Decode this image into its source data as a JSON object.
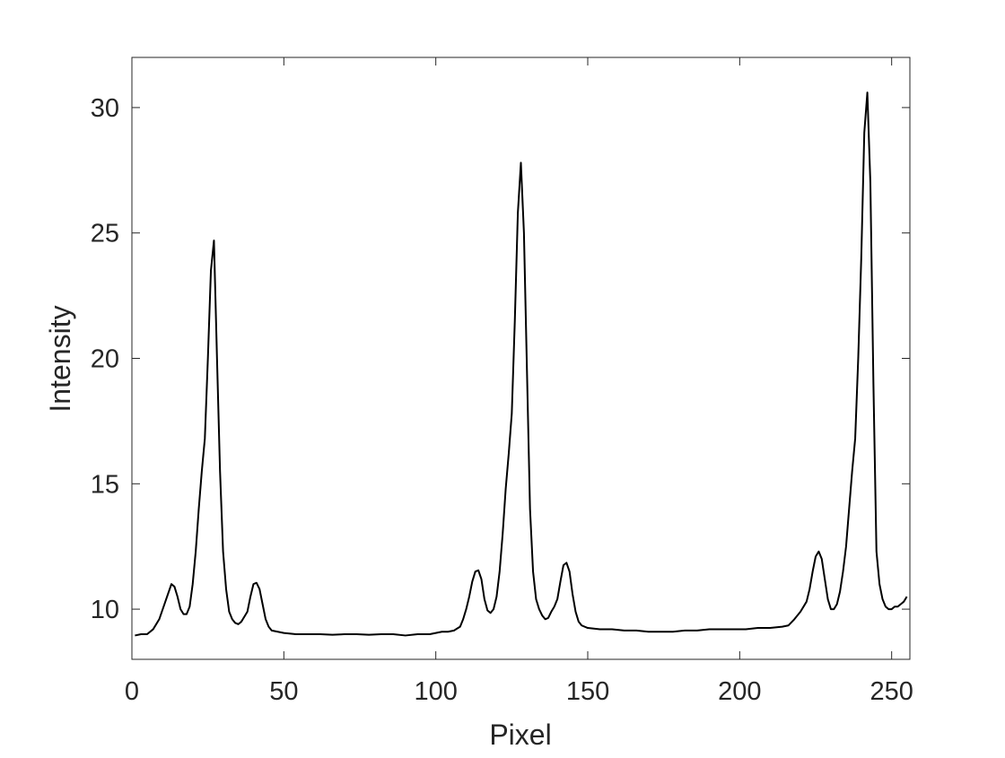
{
  "chart_data": {
    "type": "line",
    "x_label": "Pixel",
    "y_label": "Intensity",
    "xlim": [
      0,
      256
    ],
    "ylim": [
      8,
      32
    ],
    "xticks": [
      0,
      50,
      100,
      150,
      200,
      250
    ],
    "yticks": [
      10,
      15,
      20,
      25,
      30
    ],
    "grid": false,
    "series": [
      {
        "color": "#000000",
        "x": [
          1,
          3,
          5,
          7,
          9,
          11,
          13,
          14,
          15,
          16,
          17,
          18,
          19,
          20,
          21,
          22,
          23,
          24,
          25,
          26,
          27,
          28,
          29,
          30,
          31,
          32,
          33,
          34,
          35,
          36,
          37,
          38,
          39,
          40,
          41,
          42,
          43,
          44,
          45,
          46,
          48,
          50,
          54,
          58,
          62,
          66,
          70,
          74,
          78,
          82,
          86,
          90,
          94,
          98,
          102,
          104,
          106,
          108,
          109,
          110,
          111,
          112,
          113,
          114,
          115,
          116,
          117,
          118,
          119,
          120,
          121,
          122,
          123,
          124,
          125,
          126,
          127,
          128,
          129,
          130,
          131,
          132,
          133,
          134,
          135,
          136,
          137,
          138,
          139,
          140,
          141,
          142,
          143,
          144,
          145,
          146,
          147,
          148,
          150,
          154,
          158,
          162,
          166,
          170,
          174,
          178,
          182,
          186,
          190,
          194,
          198,
          202,
          206,
          210,
          214,
          216,
          218,
          220,
          222,
          223,
          224,
          225,
          226,
          227,
          228,
          229,
          230,
          231,
          232,
          233,
          234,
          235,
          236,
          237,
          238,
          239,
          240,
          241,
          242,
          243,
          244,
          245,
          246,
          247,
          248,
          249,
          250,
          251,
          252,
          253,
          254,
          255
        ],
        "values": [
          8.95,
          9.0,
          9.0,
          9.2,
          9.6,
          10.3,
          11.0,
          10.9,
          10.5,
          10.0,
          9.8,
          9.8,
          10.1,
          11.0,
          12.3,
          14.0,
          15.5,
          16.8,
          20.0,
          23.5,
          24.7,
          20.0,
          15.5,
          12.3,
          10.8,
          9.9,
          9.6,
          9.45,
          9.4,
          9.5,
          9.7,
          9.9,
          10.5,
          11.0,
          11.05,
          10.8,
          10.2,
          9.6,
          9.3,
          9.15,
          9.1,
          9.05,
          9.0,
          9.0,
          9.0,
          8.98,
          9.0,
          9.0,
          8.98,
          9.0,
          9.0,
          8.95,
          9.0,
          9.0,
          9.1,
          9.1,
          9.15,
          9.3,
          9.6,
          10.0,
          10.5,
          11.1,
          11.5,
          11.55,
          11.2,
          10.4,
          9.95,
          9.85,
          10.0,
          10.5,
          11.5,
          13.0,
          14.8,
          16.2,
          17.8,
          21.5,
          25.8,
          27.8,
          25.0,
          19.5,
          14.0,
          11.5,
          10.4,
          10.0,
          9.75,
          9.6,
          9.65,
          9.9,
          10.1,
          10.4,
          11.1,
          11.75,
          11.85,
          11.5,
          10.6,
          9.9,
          9.5,
          9.35,
          9.25,
          9.2,
          9.2,
          9.15,
          9.15,
          9.1,
          9.1,
          9.1,
          9.15,
          9.15,
          9.2,
          9.2,
          9.2,
          9.2,
          9.25,
          9.25,
          9.3,
          9.35,
          9.6,
          9.9,
          10.3,
          10.8,
          11.5,
          12.1,
          12.3,
          12.0,
          11.2,
          10.4,
          10.0,
          10.0,
          10.2,
          10.7,
          11.5,
          12.5,
          14.0,
          15.5,
          16.8,
          20.0,
          24.0,
          29.0,
          30.6,
          27.0,
          19.0,
          12.3,
          11.0,
          10.4,
          10.1,
          10.0,
          10.0,
          10.1,
          10.1,
          10.2,
          10.3,
          10.5
        ]
      }
    ]
  }
}
